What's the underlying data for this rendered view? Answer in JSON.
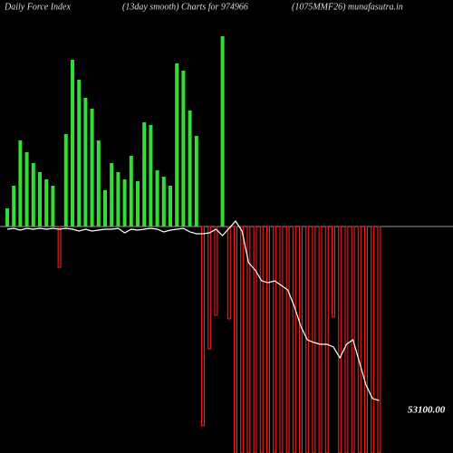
{
  "chart_data": {
    "type": "bar",
    "title": "Daily Force  Index",
    "subtitle": "(13day smooth) Charts for 974966",
    "source": "(1075MMF26) munafasutra.in",
    "annotation": "53100.00",
    "categories": [
      null,
      null,
      null,
      null,
      null,
      null,
      null,
      null,
      null,
      null,
      null,
      null,
      null,
      null,
      null,
      null,
      null,
      null,
      null,
      null,
      null,
      null,
      null,
      null,
      null,
      null,
      null,
      null,
      null,
      null,
      null,
      null,
      null,
      null,
      null,
      null,
      null,
      null,
      null,
      null,
      null,
      null,
      null,
      null,
      null,
      null,
      null,
      null,
      null,
      null,
      null,
      null,
      null,
      null,
      null,
      null,
      null,
      null
    ],
    "series": [
      {
        "type": "bar",
        "positive_color": "#33dd33",
        "negative_color": "#ee2222",
        "values": [
          20,
          45,
          95,
          82,
          70,
          60,
          52,
          45,
          -45,
          102,
          184,
          162,
          142,
          130,
          95,
          40,
          70,
          60,
          52,
          78,
          50,
          115,
          112,
          62,
          55,
          45,
          180,
          172,
          128,
          100,
          -220,
          -135,
          -98,
          210,
          -102,
          -250,
          -250,
          -250,
          -250,
          -250,
          -250,
          -250,
          -250,
          -250,
          -250,
          -250,
          -250,
          -250,
          -250,
          -250,
          -100,
          -250,
          -250,
          -250,
          -250,
          -250,
          -250,
          -250
        ]
      },
      {
        "type": "line",
        "color": "#ffffff",
        "values": [
          -3,
          -2,
          -4,
          -2,
          -3,
          -2,
          -3,
          -2,
          -3,
          -2,
          -3,
          -5,
          -3,
          -5,
          -4,
          -3,
          -3,
          -2,
          -7,
          -3,
          -4,
          -3,
          -2,
          -3,
          -6,
          -4,
          -3,
          -2,
          -6,
          -8,
          -8,
          -7,
          -3,
          -10,
          -2,
          6,
          -5,
          -40,
          -48,
          -60,
          -62,
          -60,
          -65,
          -70,
          -88,
          -110,
          -125,
          -128,
          -130,
          -130,
          -133,
          -145,
          -130,
          -125,
          -150,
          -175,
          -190,
          -192
        ]
      }
    ],
    "ylim": [
      -250,
      250
    ]
  }
}
